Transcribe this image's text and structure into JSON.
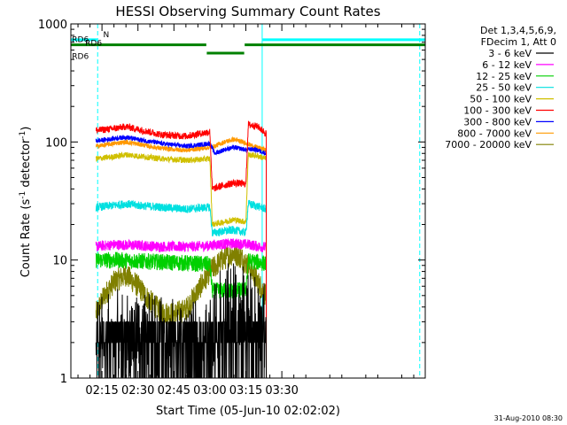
{
  "chart_data": {
    "type": "line",
    "title": "HESSI Observing Summary Count Rates",
    "xlabel": "Start Time (05-Jun-10 02:02:02)",
    "ylabel_prefix": "Count Rate (s",
    "ylabel_exp1": "-1",
    "ylabel_mid": " detector",
    "ylabel_exp2": "-1",
    "ylabel_suffix": ")",
    "y_scale": "log",
    "ylim": [
      1,
      1000
    ],
    "xlim_minutes": [
      2.03,
      149.8
    ],
    "x_ticks": [
      {
        "minute": 15,
        "label": "02:15"
      },
      {
        "minute": 30,
        "label": "02:30"
      },
      {
        "minute": 45,
        "label": "02:45"
      },
      {
        "minute": 60,
        "label": "03:00"
      },
      {
        "minute": 75,
        "label": "03:15"
      },
      {
        "minute": 90,
        "label": "03:30"
      }
    ],
    "y_ticks": [
      {
        "value": 1,
        "label": "1"
      },
      {
        "value": 10,
        "label": "10"
      },
      {
        "value": 100,
        "label": "100"
      },
      {
        "value": 1000,
        "label": "1000"
      }
    ],
    "legend_header": [
      "Det 1,3,4,5,6,9,",
      "FDecim 1, Att 0"
    ],
    "legend_position": "right-outside",
    "data_start_minute": 12.5,
    "data_end_minute": 83.5,
    "series": [
      {
        "name": "3 - 6 keV",
        "color": "#000000",
        "points": [
          [
            12.5,
            1
          ],
          [
            13,
            2
          ],
          [
            14,
            2.5
          ],
          [
            20,
            2.4
          ],
          [
            30,
            2.2
          ],
          [
            40,
            2.1
          ],
          [
            50,
            1.9
          ],
          [
            60,
            2.0
          ],
          [
            61,
            3.0
          ],
          [
            63,
            3.2
          ],
          [
            66,
            3.8
          ],
          [
            70,
            4.5
          ],
          [
            73,
            4.2
          ],
          [
            75,
            3.8
          ],
          [
            77,
            3.4
          ],
          [
            80,
            3.0
          ],
          [
            83.5,
            2.8
          ]
        ]
      },
      {
        "name": "6 - 12 keV",
        "color": "#ff00ff",
        "points": [
          [
            12.5,
            13
          ],
          [
            20,
            13.5
          ],
          [
            30,
            13.3
          ],
          [
            40,
            13
          ],
          [
            50,
            13
          ],
          [
            60,
            13.2
          ],
          [
            62,
            13.5
          ],
          [
            70,
            13.8
          ],
          [
            77,
            13.5
          ],
          [
            80,
            13
          ],
          [
            83.5,
            12.8
          ]
        ]
      },
      {
        "name": "12 - 25 keV",
        "color": "#00d000",
        "points": [
          [
            12.5,
            10
          ],
          [
            20,
            10
          ],
          [
            30,
            9.8
          ],
          [
            40,
            9.6
          ],
          [
            50,
            9.4
          ],
          [
            60,
            9.2
          ],
          [
            61,
            5.5
          ],
          [
            70,
            5.5
          ],
          [
            75,
            5.6
          ],
          [
            76,
            9.8
          ],
          [
            80,
            9.6
          ],
          [
            83.5,
            9.3
          ]
        ]
      },
      {
        "name": "25 - 50 keV",
        "color": "#00e0e0",
        "points": [
          [
            12.5,
            28
          ],
          [
            20,
            29
          ],
          [
            25,
            30
          ],
          [
            30,
            29
          ],
          [
            40,
            28
          ],
          [
            50,
            27
          ],
          [
            60,
            28
          ],
          [
            61,
            17
          ],
          [
            66,
            17.5
          ],
          [
            70,
            18
          ],
          [
            75,
            17
          ],
          [
            76,
            30
          ],
          [
            80,
            28.5
          ],
          [
            83.5,
            27
          ]
        ]
      },
      {
        "name": "50 - 100 keV",
        "color": "#d0c000",
        "points": [
          [
            12.5,
            72
          ],
          [
            20,
            75
          ],
          [
            25,
            78
          ],
          [
            30,
            76
          ],
          [
            40,
            72
          ],
          [
            50,
            70
          ],
          [
            60,
            72
          ],
          [
            61,
            20
          ],
          [
            66,
            21
          ],
          [
            70,
            22
          ],
          [
            75,
            21
          ],
          [
            76,
            78
          ],
          [
            80,
            76
          ],
          [
            83.5,
            72
          ]
        ]
      },
      {
        "name": "100 - 300 keV",
        "color": "#ff0000",
        "points": [
          [
            12.5,
            125
          ],
          [
            20,
            130
          ],
          [
            25,
            135
          ],
          [
            30,
            128
          ],
          [
            40,
            115
          ],
          [
            50,
            112
          ],
          [
            60,
            122
          ],
          [
            61,
            40
          ],
          [
            66,
            43
          ],
          [
            70,
            45
          ],
          [
            75,
            44
          ],
          [
            76,
            140
          ],
          [
            80,
            135
          ],
          [
            83.5,
            118
          ]
        ]
      },
      {
        "name": "300 - 800 keV",
        "color": "#0000ff",
        "points": [
          [
            12.5,
            102
          ],
          [
            20,
            107
          ],
          [
            25,
            110
          ],
          [
            30,
            105
          ],
          [
            40,
            97
          ],
          [
            50,
            92
          ],
          [
            60,
            97
          ],
          [
            62,
            80
          ],
          [
            66,
            86
          ],
          [
            70,
            90
          ],
          [
            75,
            86
          ],
          [
            78,
            87
          ],
          [
            80,
            85
          ],
          [
            83.5,
            80
          ]
        ]
      },
      {
        "name": "800 - 7000 keV",
        "color": "#ff9900",
        "points": [
          [
            12.5,
            92
          ],
          [
            20,
            97
          ],
          [
            25,
            100
          ],
          [
            30,
            96
          ],
          [
            40,
            88
          ],
          [
            50,
            85
          ],
          [
            60,
            90
          ],
          [
            62,
            92
          ],
          [
            66,
            100
          ],
          [
            70,
            105
          ],
          [
            75,
            98
          ],
          [
            78,
            92
          ],
          [
            80,
            90
          ],
          [
            83.5,
            85
          ]
        ]
      },
      {
        "name": "7000 - 20000 keV",
        "color": "#808000",
        "points": [
          [
            12.5,
            3.5
          ],
          [
            16,
            5
          ],
          [
            20,
            6.5
          ],
          [
            25,
            7.5
          ],
          [
            30,
            6
          ],
          [
            35,
            4.5
          ],
          [
            40,
            3.6
          ],
          [
            45,
            3.5
          ],
          [
            50,
            3.8
          ],
          [
            55,
            5.5
          ],
          [
            60,
            8
          ],
          [
            65,
            10
          ],
          [
            70,
            11.5
          ],
          [
            73,
            10.5
          ],
          [
            77,
            8.5
          ],
          [
            80,
            6.5
          ],
          [
            83.5,
            5
          ]
        ]
      }
    ],
    "flag_bars": [
      {
        "name": "N",
        "color": "#00ffff",
        "y_value": 735,
        "label_minute": 15.5,
        "segments": [
          [
            2.03,
            13
          ],
          [
            82,
            150
          ]
        ]
      },
      {
        "name": "RD6",
        "color": "#008000",
        "y_value": 665,
        "label_minute": 2.5,
        "segments": [
          [
            2.03,
            58.5
          ],
          [
            74.5,
            150
          ]
        ]
      },
      {
        "name": "RD6",
        "color": "#008000",
        "y_value": 565,
        "segments": [
          [
            58.7,
            74.3
          ]
        ]
      }
    ],
    "flag_labels": [
      {
        "text": "RD6",
        "color": "#008000",
        "minute": 2.5,
        "y_value": 540
      },
      {
        "text": "RD6",
        "color": "#008000",
        "minute": 8,
        "y_value": 700
      }
    ],
    "vertical_lines": [
      {
        "minute": 2.03,
        "color": "#00ffff",
        "style": "solid"
      },
      {
        "minute": 13.2,
        "color": "#00ffff",
        "style": "dashed"
      },
      {
        "minute": 81.8,
        "color": "#00ffff",
        "style": "solid"
      },
      {
        "minute": 147.5,
        "color": "#00ffff",
        "style": "dashed"
      }
    ]
  },
  "timestamp": "31-Aug-2010 08:30"
}
